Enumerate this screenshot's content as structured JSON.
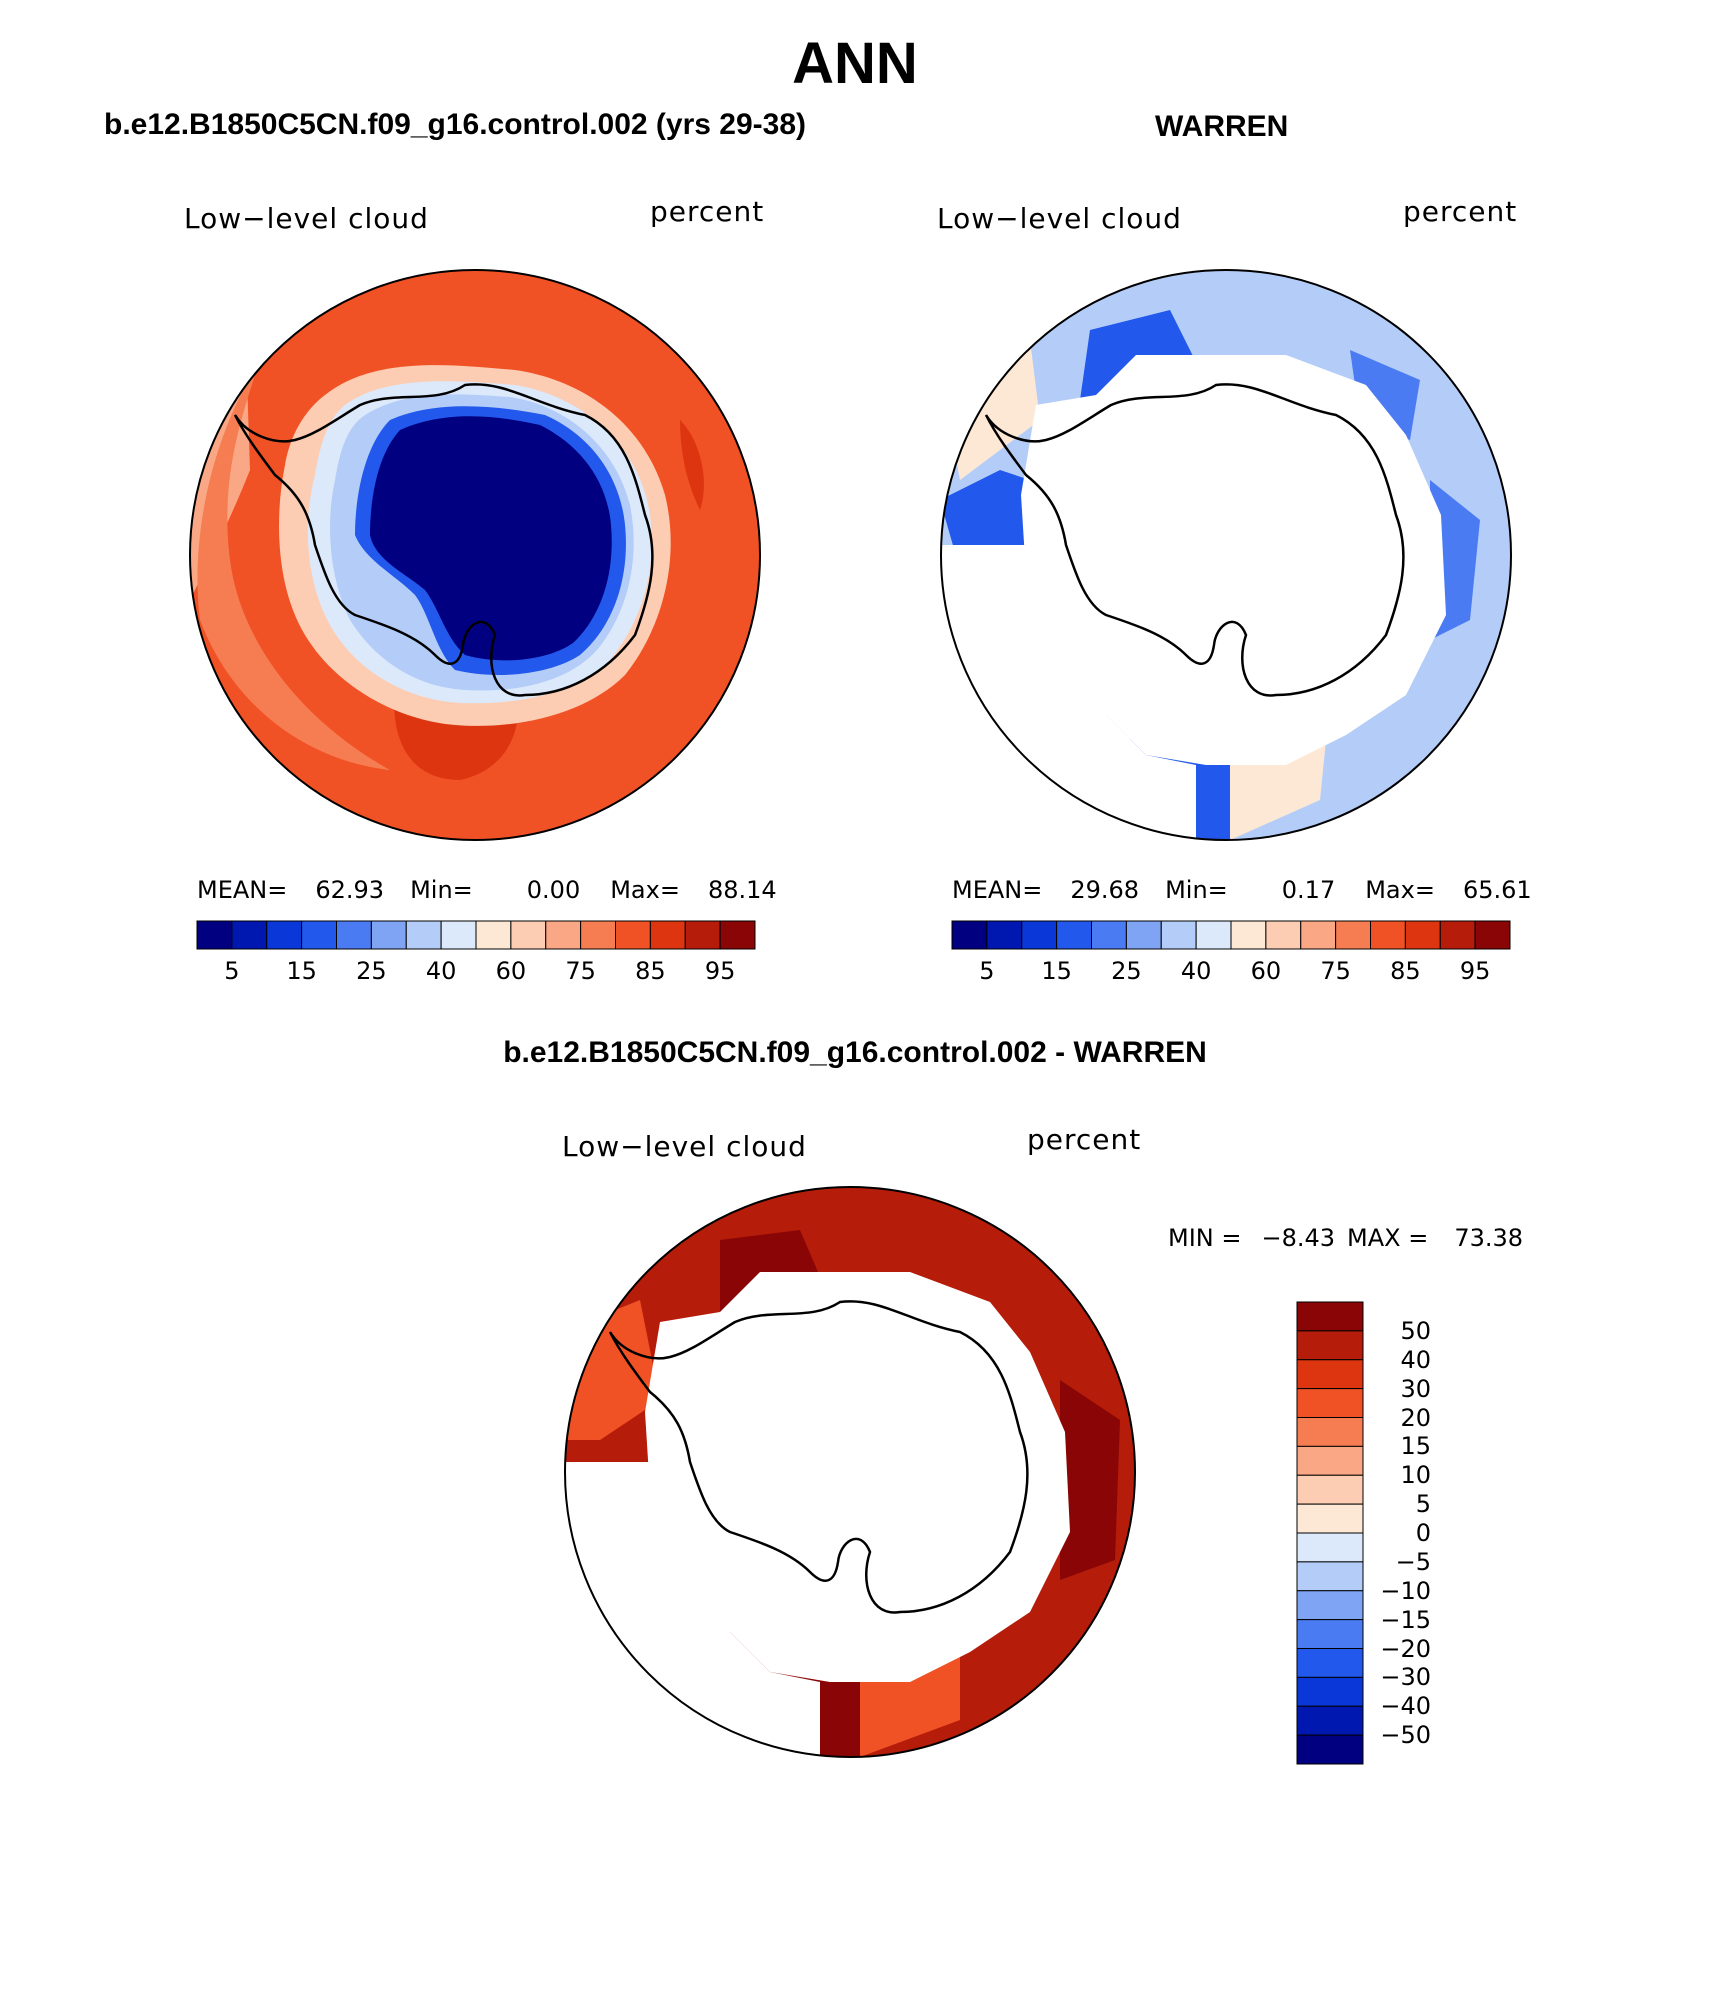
{
  "title": "ANN",
  "panels": [
    {
      "title": "b.e12.B1850C5CN.f09_g16.control.002 (yrs 29-38)",
      "variable": "Low−level cloud",
      "units": "percent",
      "stats": {
        "mean_label": "MEAN=",
        "mean": "62.93",
        "min_label": "Min=",
        "min": "0.00",
        "max_label": "Max=",
        "max": "88.14"
      }
    },
    {
      "title": "WARREN",
      "variable": "Low−level cloud",
      "units": "percent",
      "stats": {
        "mean_label": "MEAN=",
        "mean": "29.68",
        "min_label": "Min=",
        "min": "0.17",
        "max_label": "Max=",
        "max": "65.61"
      }
    },
    {
      "title": "b.e12.B1850C5CN.f09_g16.control.002 - WARREN",
      "variable": "Low−level cloud",
      "units": "percent",
      "stats": {
        "min_label": "MIN =",
        "min": "−8.43",
        "max_label": "MAX =",
        "max": "73.38"
      }
    }
  ],
  "colorbar_abs": {
    "colors": [
      "#000080",
      "#0017b0",
      "#0a37d8",
      "#2358ec",
      "#4a7bf2",
      "#7fa4f4",
      "#b4cdf8",
      "#dce9fb",
      "#fde8d6",
      "#fccdb3",
      "#f9a784",
      "#f67c52",
      "#f15225",
      "#dd3510",
      "#b51c0a",
      "#8a0606"
    ],
    "tick_labels": [
      "5",
      "15",
      "25",
      "40",
      "60",
      "75",
      "85",
      "95"
    ]
  },
  "colorbar_diff": {
    "colors": [
      "#8a0606",
      "#b51c0a",
      "#dd3510",
      "#f15225",
      "#f67c52",
      "#f9a784",
      "#fccdb3",
      "#fde8d6",
      "#dce9fb",
      "#b4cdf8",
      "#7fa4f4",
      "#4a7bf2",
      "#2358ec",
      "#0a37d8",
      "#0017b0",
      "#000080"
    ],
    "tick_labels": [
      "50",
      "40",
      "30",
      "20",
      "15",
      "10",
      "5",
      "0",
      "−5",
      "−10",
      "−15",
      "−20",
      "−30",
      "−40",
      "−50"
    ]
  },
  "map_colors": {
    "ocean_model": "#f15225",
    "ocean_model_dark": "#dd3510",
    "ocean_light": "#f9a784",
    "ice_sheet": "#000080",
    "ice_mid": "#7fa4f4",
    "ice_light": "#b4cdf8",
    "obs_main": "#b4cdf8",
    "obs_mid": "#4a7bf2",
    "obs_dark": "#2358ec",
    "obs_peach": "#fde8d6",
    "diff_main": "#b51c0a",
    "diff_dark": "#8a0606",
    "diff_mid": "#f15225",
    "missing": "#ffffff",
    "coast": "#000000"
  }
}
